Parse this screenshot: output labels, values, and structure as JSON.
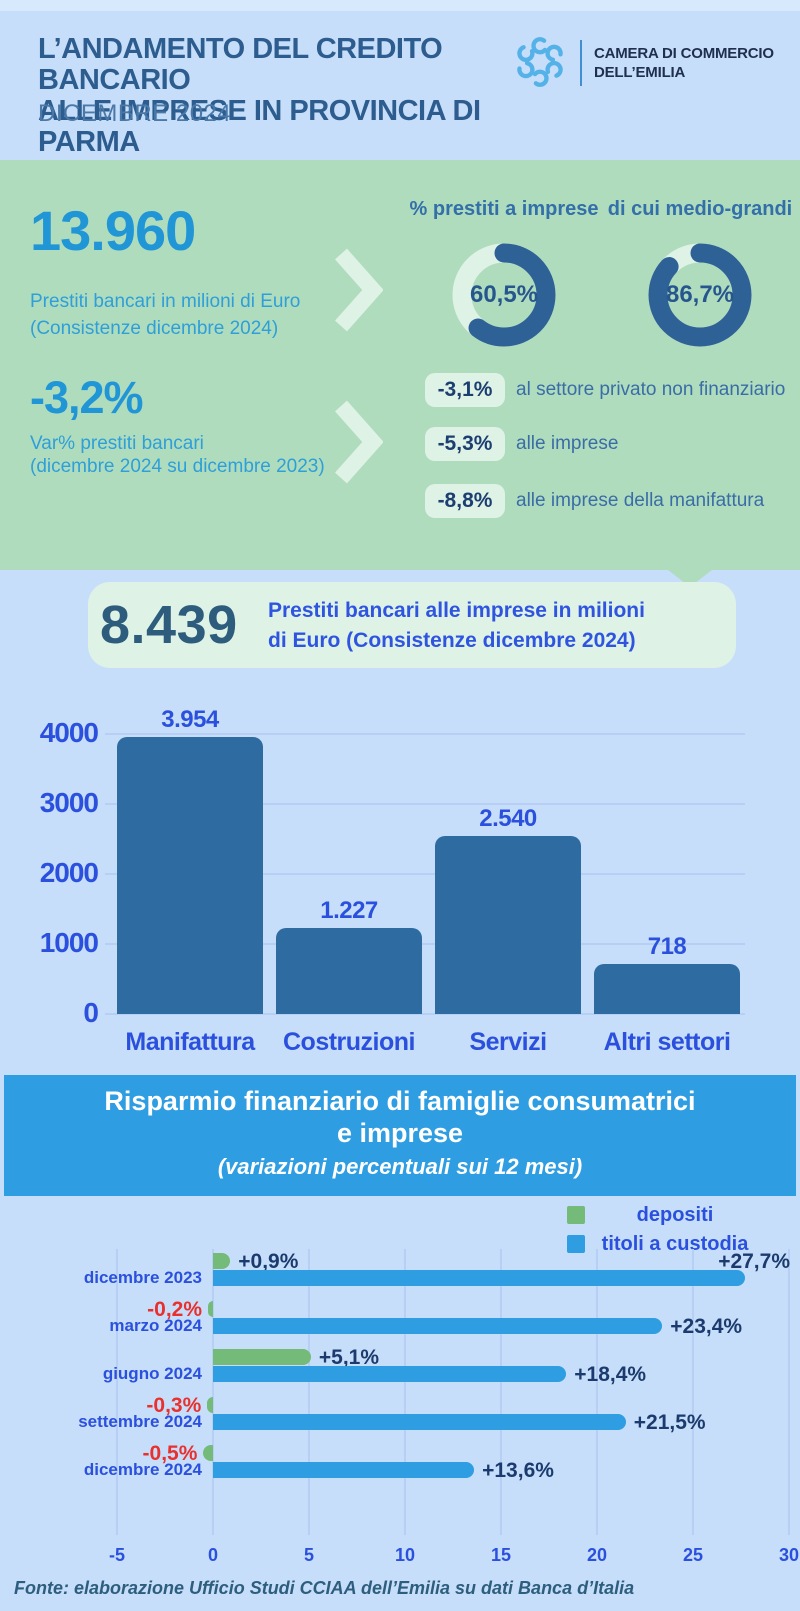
{
  "header": {
    "title_line1": "L’ANDAMENTO DEL CREDITO BANCARIO",
    "title_line2": "ALLE IMPRESE IN PROVINCIA DI PARMA",
    "subtitle": "DICEMBRE 2024",
    "logo": {
      "org_line1": "CAMERA DI COMMERCIO",
      "org_line2": "DELL’EMILIA"
    }
  },
  "stats": {
    "loans_total": {
      "value": "13.960",
      "caption_line1": "Prestiti bancari in milioni di Euro",
      "caption_line2": "(Consistenze dicembre 2024)"
    },
    "variation": {
      "value": "-3,2%",
      "caption_line1": "Var% prestiti bancari",
      "caption_line2": "(dicembre 2024 su dicembre 2023)"
    },
    "badges": [
      {
        "value": "-3,1%",
        "label": "al settore privato non finanziario"
      },
      {
        "value": "-5,3%",
        "label": "alle imprese"
      },
      {
        "value": "-8,8%",
        "label": "alle imprese della manifattura"
      }
    ]
  },
  "card": {
    "value": "8.439",
    "caption_line1": "Prestiti bancari alle imprese in milioni",
    "caption_line2": "di Euro (Consistenze dicembre 2024)"
  },
  "banner": {
    "title_line1": "Risparmio finanziario di famiglie consumatrici",
    "title_line2": "e imprese",
    "subtitle": "(variazioni percentuali sui 12 mesi)"
  },
  "legend": [
    {
      "label": "depositi",
      "color": "#74ba78"
    },
    {
      "label": "titoli a custodia",
      "color": "#2f9de2"
    }
  ],
  "footer": {
    "source": "Fonte: elaborazione Ufficio Studi CCIAA dell’Emilia su dati Banca d’Italia"
  },
  "colors": {
    "page_bg": "#c7defa",
    "green_band": "#b0dcbe",
    "mint": "#def2e6",
    "accent_cyan": "#2196d6",
    "royal_blue": "#2b50dd",
    "steel_bar": "#2e6ba1",
    "bright_blue": "#2f9de2",
    "green_bar": "#74ba78",
    "navy_label": "#1b3b6e",
    "red_label": "#e8312e",
    "donut_arc": "#2e6195",
    "gridline": "#b7cff4"
  },
  "chart_data": [
    {
      "type": "bar",
      "title": "Prestiti bancari alle imprese in milioni di Euro (Consistenze dicembre 2024)",
      "categories": [
        "Manifattura",
        "Costruzioni",
        "Servizi",
        "Altri settori"
      ],
      "values": [
        3954,
        1227,
        2540,
        718
      ],
      "value_labels": [
        "3.954",
        "1.227",
        "2.540",
        "718"
      ],
      "xlabel": "",
      "ylabel": "",
      "ylim": [
        0,
        4000
      ],
      "yticks": [
        0,
        1000,
        2000,
        3000,
        4000
      ],
      "grid": true
    },
    {
      "type": "bar-horizontal",
      "title": "Risparmio finanziario di famiglie consumatrici e imprese",
      "subtitle": "(variazioni percentuali sui 12 mesi)",
      "categories": [
        "dicembre 2023",
        "marzo 2024",
        "giugno 2024",
        "settembre 2024",
        "dicembre 2024"
      ],
      "series": [
        {
          "name": "depositi",
          "color": "#74ba78",
          "values": [
            0.9,
            -0.2,
            5.1,
            -0.3,
            -0.5
          ],
          "labels": [
            "+0,9%",
            "-0,2%",
            "+5,1%",
            "-0,3%",
            "-0,5%"
          ]
        },
        {
          "name": "titoli a custodia",
          "color": "#2f9de2",
          "values": [
            27.7,
            23.4,
            18.4,
            21.5,
            13.6
          ],
          "labels": [
            "+27,7%",
            "+23,4%",
            "+18,4%",
            "+21,5%",
            "+13,6%"
          ]
        }
      ],
      "xlim": [
        -5,
        30
      ],
      "xticks": [
        -5,
        0,
        5,
        10,
        15,
        20,
        25,
        30
      ],
      "grid": true,
      "legend_position": "top-right"
    },
    {
      "type": "donut",
      "label": "%  prestiti a imprese",
      "value": 60.5,
      "value_label": "60,5%"
    },
    {
      "type": "donut",
      "label": "di cui medio-grandi",
      "value": 86.7,
      "value_label": "86,7%"
    }
  ]
}
